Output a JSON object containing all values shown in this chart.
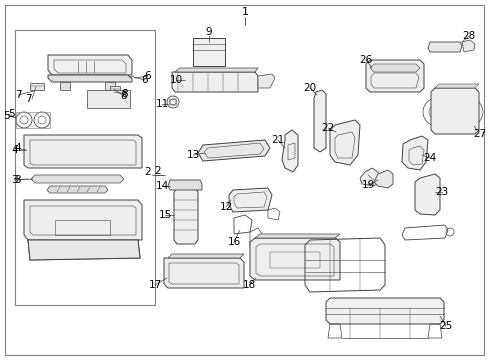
{
  "bg_color": "#ffffff",
  "border_color": "#606060",
  "line_color": "#404040",
  "text_color": "#000000",
  "fig_width": 4.89,
  "fig_height": 3.6,
  "dpi": 100,
  "title": "1"
}
